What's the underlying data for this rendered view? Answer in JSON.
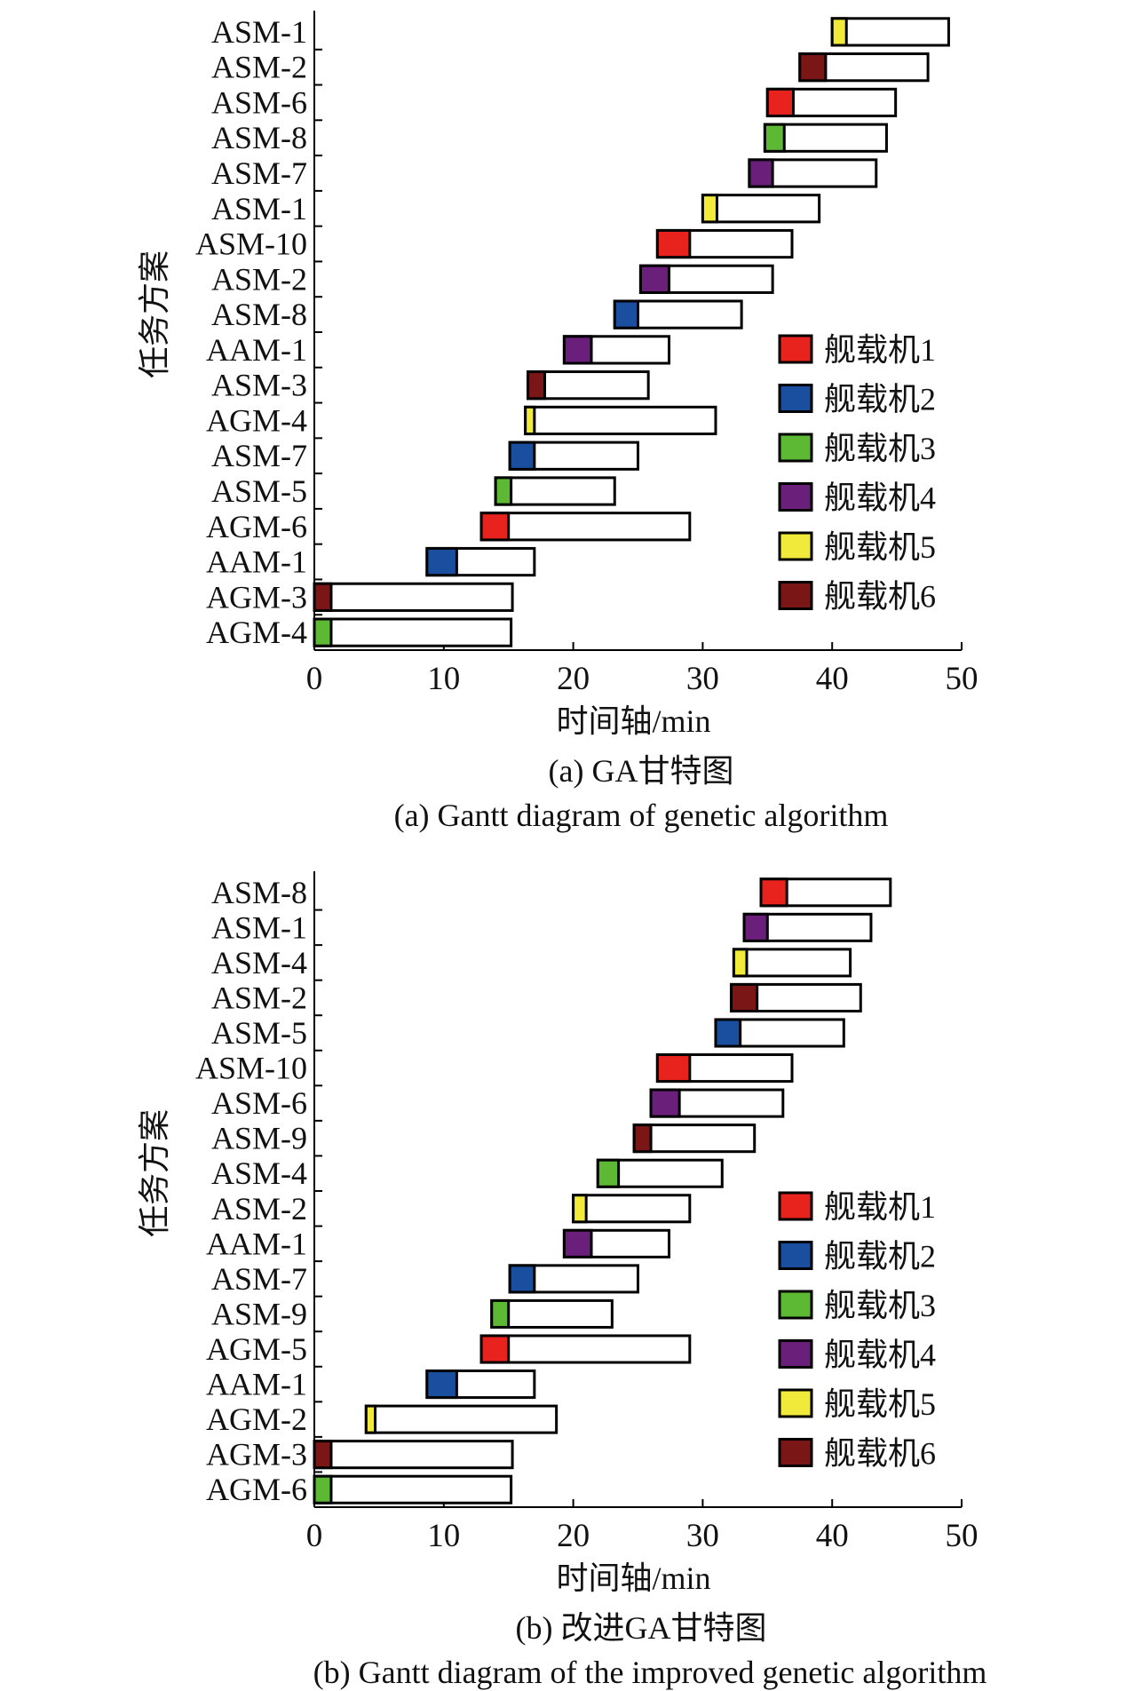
{
  "machine_colors": [
    "#e8231e",
    "#1a4fa0",
    "#5db833",
    "#6a1f7a",
    "#f2ea3a",
    "#7a1616"
  ],
  "chart_data": [
    {
      "type": "gantt",
      "panel_label": "(a) GA甘特图",
      "caption": "(a) Gantt diagram of genetic algorithm",
      "ylabel": "任务方案",
      "xlabel": "时间轴/min",
      "xlim": [
        0,
        50
      ],
      "xticks": [
        0,
        10,
        20,
        30,
        40,
        50
      ],
      "legend_position": "right",
      "legend": [
        "舰载机1",
        "舰载机2",
        "舰载机3",
        "舰载机4",
        "舰载机5",
        "舰载机6"
      ],
      "tasks": [
        {
          "label": "ASM-1",
          "machine": 5,
          "start": 40.0,
          "colored_end": 41.1,
          "end": 49.0
        },
        {
          "label": "ASM-2",
          "machine": 6,
          "start": 37.5,
          "colored_end": 39.5,
          "end": 47.4
        },
        {
          "label": "ASM-6",
          "machine": 1,
          "start": 35.0,
          "colored_end": 37.0,
          "end": 44.9
        },
        {
          "label": "ASM-8",
          "machine": 3,
          "start": 34.8,
          "colored_end": 36.3,
          "end": 44.2
        },
        {
          "label": "ASM-7",
          "machine": 4,
          "start": 33.6,
          "colored_end": 35.4,
          "end": 43.4
        },
        {
          "label": "ASM-1",
          "machine": 5,
          "start": 30.0,
          "colored_end": 31.1,
          "end": 39.0
        },
        {
          "label": "ASM-10",
          "machine": 1,
          "start": 26.5,
          "colored_end": 29.0,
          "end": 36.9
        },
        {
          "label": "ASM-2",
          "machine": 4,
          "start": 25.2,
          "colored_end": 27.4,
          "end": 35.4
        },
        {
          "label": "ASM-8",
          "machine": 2,
          "start": 23.2,
          "colored_end": 25.0,
          "end": 33.0
        },
        {
          "label": "AAM-1",
          "machine": 4,
          "start": 19.3,
          "colored_end": 21.4,
          "end": 27.4
        },
        {
          "label": "ASM-3",
          "machine": 6,
          "start": 16.5,
          "colored_end": 17.8,
          "end": 25.8
        },
        {
          "label": "AGM-4",
          "machine": 5,
          "start": 16.3,
          "colored_end": 17.0,
          "end": 31.0
        },
        {
          "label": "ASM-7",
          "machine": 2,
          "start": 15.1,
          "colored_end": 17.0,
          "end": 25.0
        },
        {
          "label": "ASM-5",
          "machine": 3,
          "start": 14.0,
          "colored_end": 15.2,
          "end": 23.2
        },
        {
          "label": "AGM-6",
          "machine": 1,
          "start": 12.9,
          "colored_end": 15.0,
          "end": 29.0
        },
        {
          "label": "AAM-1",
          "machine": 2,
          "start": 8.7,
          "colored_end": 11.0,
          "end": 17.0
        },
        {
          "label": "AGM-3",
          "machine": 6,
          "start": 0.0,
          "colored_end": 1.3,
          "end": 15.3
        },
        {
          "label": "AGM-4",
          "machine": 3,
          "start": 0.0,
          "colored_end": 1.3,
          "end": 15.2
        }
      ]
    },
    {
      "type": "gantt",
      "panel_label": "(b) 改进GA甘特图",
      "caption": "(b) Gantt diagram of the improved genetic algorithm",
      "ylabel": "任务方案",
      "xlabel": "时间轴/min",
      "xlim": [
        0,
        50
      ],
      "xticks": [
        0,
        10,
        20,
        30,
        40,
        50
      ],
      "legend_position": "right",
      "legend": [
        "舰载机1",
        "舰载机2",
        "舰载机3",
        "舰载机4",
        "舰载机5",
        "舰载机6"
      ],
      "tasks": [
        {
          "label": "ASM-8",
          "machine": 1,
          "start": 34.5,
          "colored_end": 36.5,
          "end": 44.5
        },
        {
          "label": "ASM-1",
          "machine": 4,
          "start": 33.2,
          "colored_end": 35.0,
          "end": 43.0
        },
        {
          "label": "ASM-4",
          "machine": 5,
          "start": 32.4,
          "colored_end": 33.4,
          "end": 41.4
        },
        {
          "label": "ASM-2",
          "machine": 6,
          "start": 32.2,
          "colored_end": 34.2,
          "end": 42.2
        },
        {
          "label": "ASM-5",
          "machine": 2,
          "start": 31.0,
          "colored_end": 32.9,
          "end": 40.9
        },
        {
          "label": "ASM-10",
          "machine": 1,
          "start": 26.5,
          "colored_end": 29.0,
          "end": 36.9
        },
        {
          "label": "ASM-6",
          "machine": 4,
          "start": 26.0,
          "colored_end": 28.2,
          "end": 36.2
        },
        {
          "label": "ASM-9",
          "machine": 6,
          "start": 24.7,
          "colored_end": 26.0,
          "end": 34.0
        },
        {
          "label": "ASM-4",
          "machine": 3,
          "start": 21.9,
          "colored_end": 23.5,
          "end": 31.5
        },
        {
          "label": "ASM-2",
          "machine": 5,
          "start": 20.0,
          "colored_end": 21.0,
          "end": 29.0
        },
        {
          "label": "AAM-1",
          "machine": 4,
          "start": 19.3,
          "colored_end": 21.4,
          "end": 27.4
        },
        {
          "label": "ASM-7",
          "machine": 2,
          "start": 15.1,
          "colored_end": 17.0,
          "end": 25.0
        },
        {
          "label": "ASM-9",
          "machine": 3,
          "start": 13.7,
          "colored_end": 15.0,
          "end": 23.0
        },
        {
          "label": "AGM-5",
          "machine": 1,
          "start": 12.9,
          "colored_end": 15.0,
          "end": 29.0
        },
        {
          "label": "AAM-1",
          "machine": 2,
          "start": 8.7,
          "colored_end": 11.0,
          "end": 17.0
        },
        {
          "label": "AGM-2",
          "machine": 5,
          "start": 4.0,
          "colored_end": 4.7,
          "end": 18.7
        },
        {
          "label": "AGM-3",
          "machine": 6,
          "start": 0.0,
          "colored_end": 1.3,
          "end": 15.3
        },
        {
          "label": "AGM-6",
          "machine": 3,
          "start": 0.0,
          "colored_end": 1.3,
          "end": 15.2
        }
      ]
    }
  ]
}
